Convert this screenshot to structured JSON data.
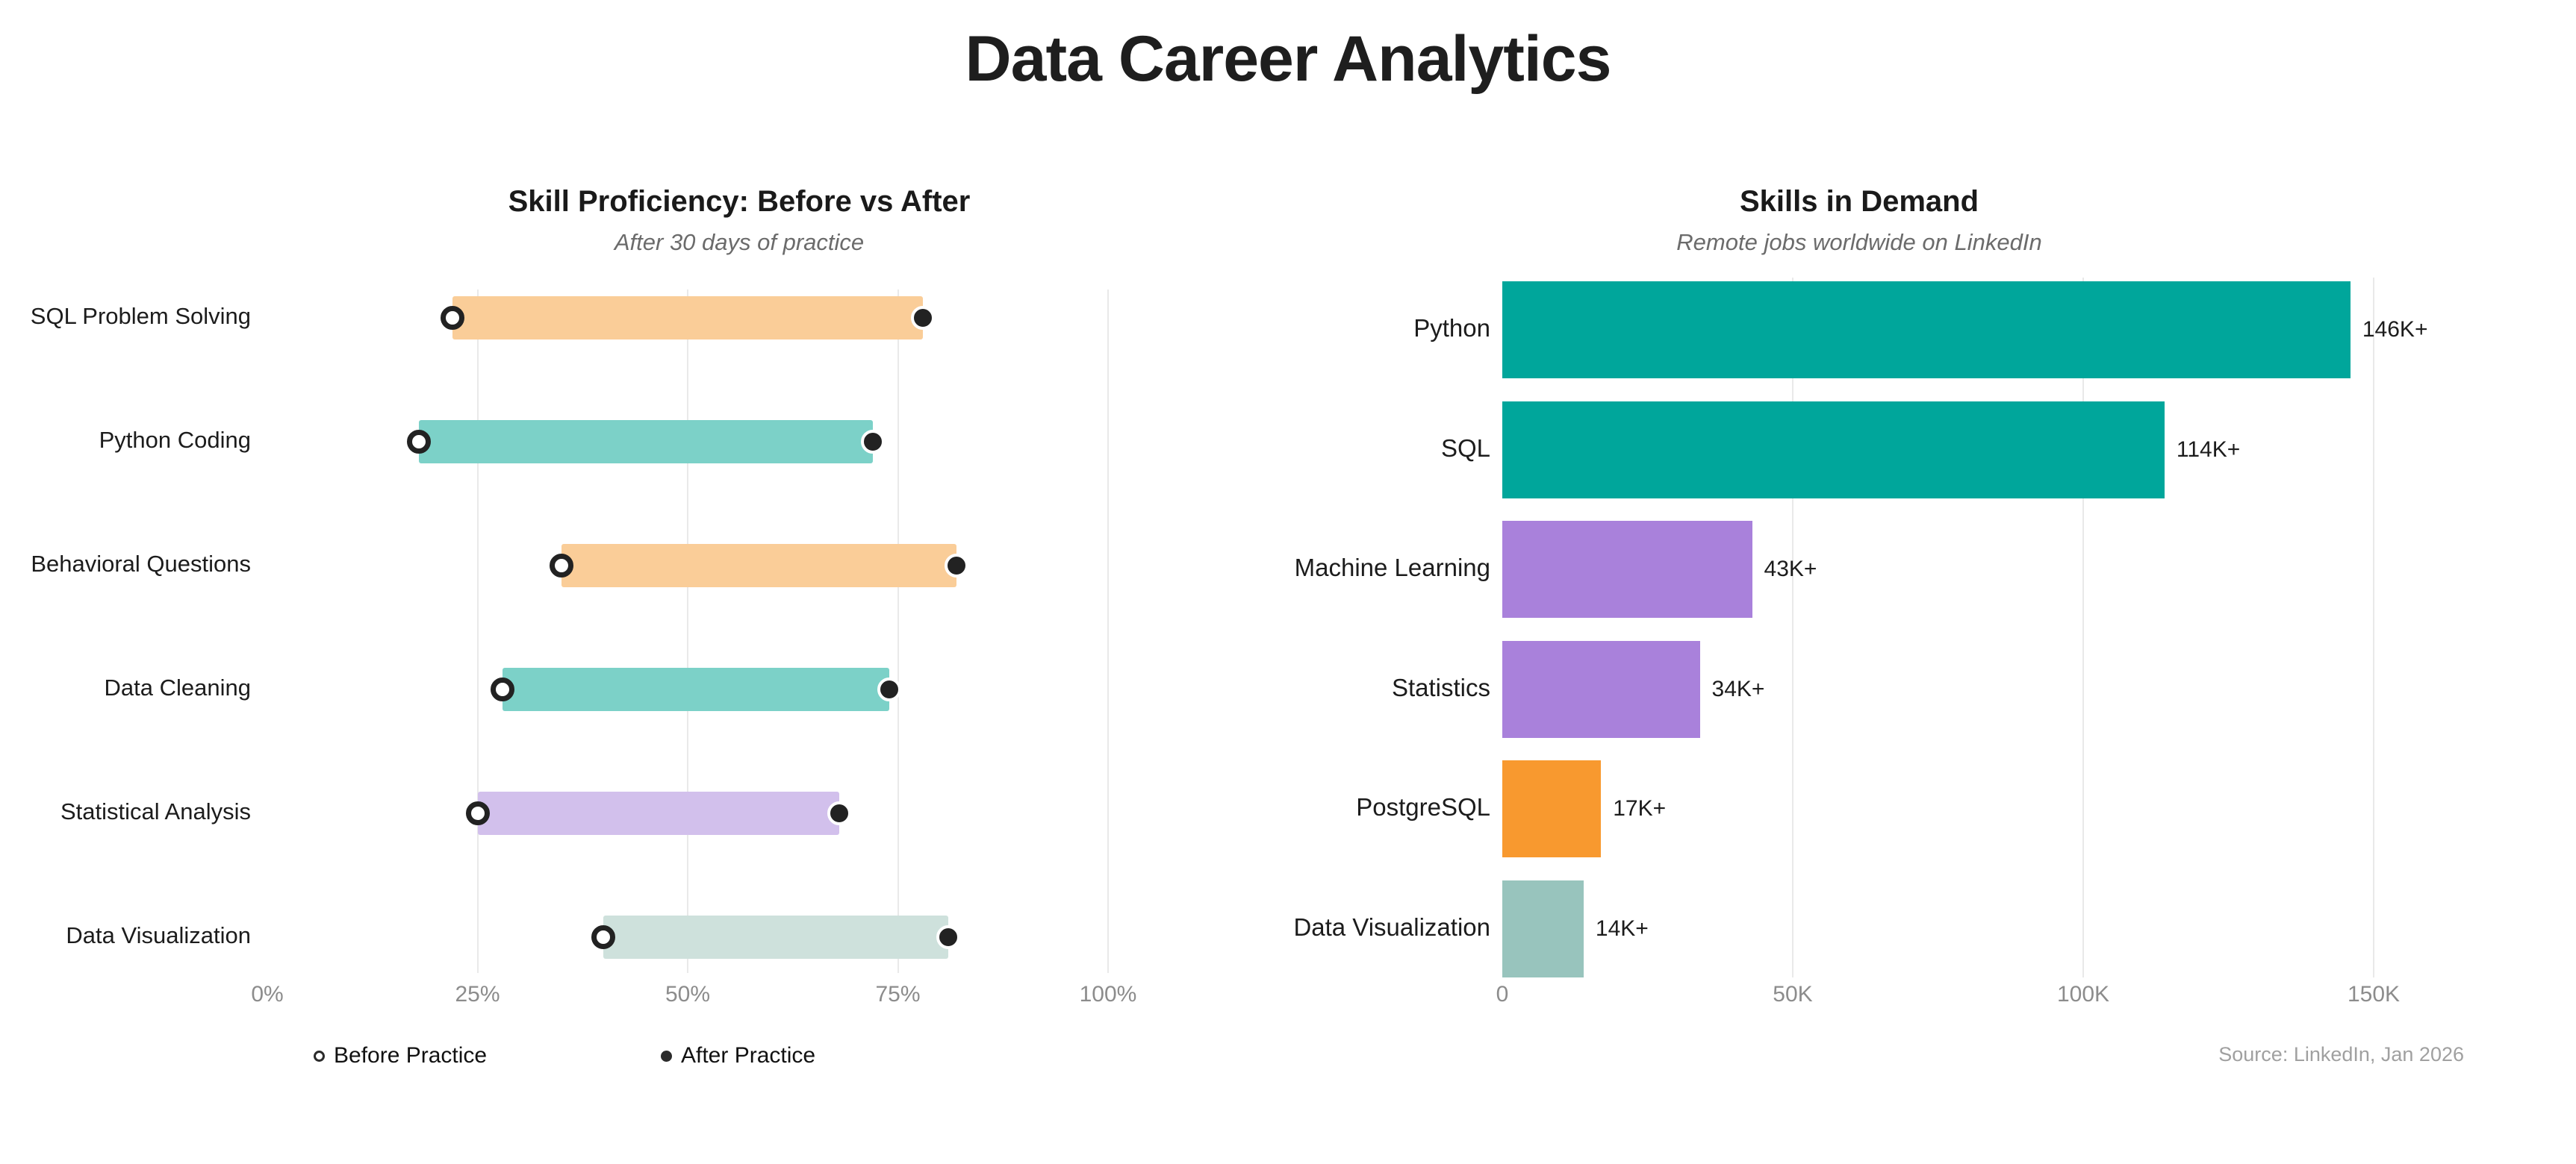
{
  "page": {
    "title": "Data Career Analytics",
    "background": "#ffffff"
  },
  "legend": {
    "before": "Before Practice",
    "after": "After Practice"
  },
  "source": "Source: LinkedIn, Jan 2026",
  "colors": {
    "marker": "#222222",
    "grid": "#e9e9e9",
    "axis_text": "#8c8c8c",
    "title_text": "#1a1a1a",
    "subtitle_text": "#6b6b6b"
  },
  "chart_data": [
    {
      "type": "bar",
      "variant": "dumbbell",
      "title": "Skill Proficiency: Before vs After",
      "subtitle": "After 30 days of practice",
      "categories": [
        "SQL Problem Solving",
        "Python Coding",
        "Behavioral Questions",
        "Data Cleaning",
        "Statistical Analysis",
        "Data Visualization"
      ],
      "series": [
        {
          "name": "Before Practice",
          "marker": "open-circle",
          "values": [
            22,
            18,
            35,
            28,
            25,
            40
          ]
        },
        {
          "name": "After Practice",
          "marker": "filled-circle",
          "values": [
            78,
            72,
            82,
            74,
            68,
            81
          ]
        }
      ],
      "bar_colors": [
        "#FACD98",
        "#7CD1C8",
        "#FACD98",
        "#7CD1C8",
        "#D2C0EC",
        "#CEE1DC"
      ],
      "xlabel": "",
      "ylabel": "",
      "xlim": [
        0,
        100
      ],
      "xtick_labels": [
        "0%",
        "25%",
        "50%",
        "75%",
        "100%"
      ],
      "xtick_values": [
        0,
        25,
        50,
        75,
        100
      ],
      "grid": "vertical-light",
      "legend_position": "bottom"
    },
    {
      "type": "bar",
      "variant": "horizontal",
      "title": "Skills in Demand",
      "subtitle": "Remote jobs worldwide on LinkedIn",
      "categories": [
        "Python",
        "SQL",
        "Machine Learning",
        "Statistics",
        "PostgreSQL",
        "Data Visualization"
      ],
      "values": [
        146000,
        114000,
        43000,
        34000,
        17000,
        14000
      ],
      "value_labels": [
        "146K+",
        "114K+",
        "43K+",
        "34K+",
        "17K+",
        "14K+"
      ],
      "bar_colors": [
        "#00A69B",
        "#00A69B",
        "#A981DB",
        "#A981DB",
        "#F8992F",
        "#98C4BD"
      ],
      "xlabel": "",
      "ylabel": "",
      "xlim": [
        0,
        150000
      ],
      "xtick_labels": [
        "0",
        "50K",
        "100K",
        "150K"
      ],
      "xtick_values": [
        0,
        50000,
        100000,
        150000
      ],
      "grid": "vertical-light",
      "annotation": "Source: LinkedIn, Jan 2026"
    }
  ]
}
